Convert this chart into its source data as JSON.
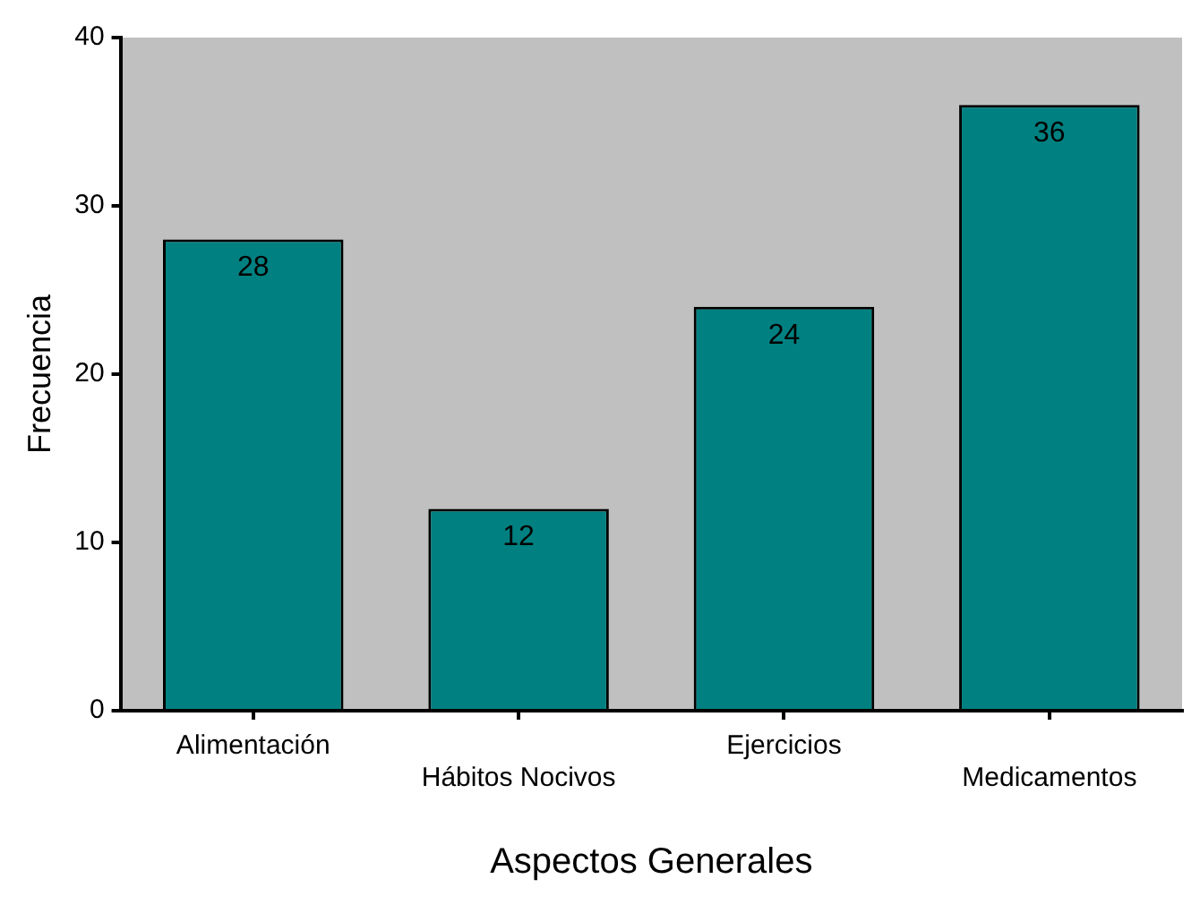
{
  "chart_data": {
    "type": "bar",
    "xlabel": "Aspectos Generales",
    "ylabel": "Frecuencia",
    "categories": [
      "Alimentación",
      "Hábitos Nocivos",
      "Ejercicios",
      "Medicamentos"
    ],
    "values": [
      28,
      12,
      24,
      36
    ],
    "color": "#008080",
    "ylim": [
      0,
      40
    ],
    "yticks": [
      0,
      10,
      20,
      30,
      40
    ],
    "grid": false,
    "data_labels": true,
    "legend": false
  }
}
